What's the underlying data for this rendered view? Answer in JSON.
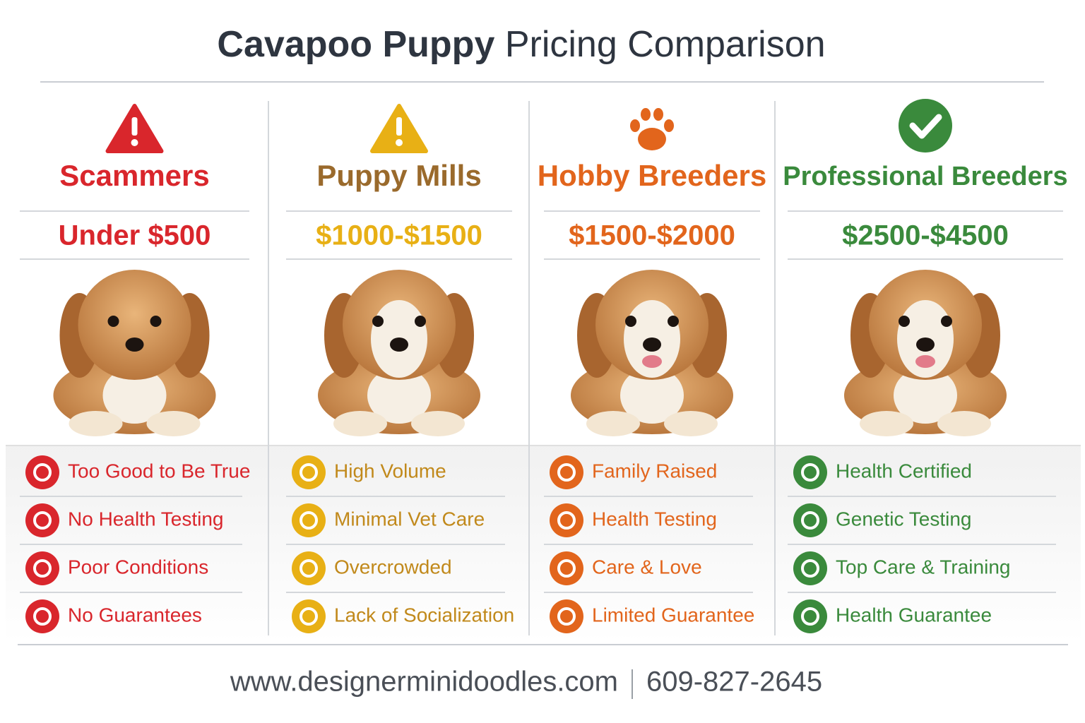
{
  "header": {
    "title_bold": "Cavapoo Puppy",
    "title_light": "Pricing Comparison"
  },
  "columns": [
    {
      "name": "Scammers",
      "price": "Under $500",
      "color": "#d9262c",
      "features": [
        "Too Good to Be True",
        "No Health Testing",
        "Poor Conditions",
        "No Guarantees"
      ]
    },
    {
      "name": "Puppy Mills",
      "price": "$1000-$1500",
      "color": "#e8b015",
      "name_color": "#9a6a2c",
      "features": [
        "High Volume",
        "Minimal Vet Care",
        "Overcrowded",
        "Lack of Socialization"
      ]
    },
    {
      "name": "Hobby Breeders",
      "price": "$1500-$2000",
      "color": "#e2651c",
      "features": [
        "Family Raised",
        "Health Testing",
        "Care & Love",
        "Limited Guarantee"
      ]
    },
    {
      "name": "Professional Breeders",
      "price": "$2500-$4500",
      "color": "#3a8a3c",
      "features": [
        "Health Certified",
        "Genetic Testing",
        "Top Care & Training",
        "Health Guarantee"
      ]
    }
  ],
  "footer": {
    "website": "www.designerminidoodles.com",
    "phone": "609-827-2645"
  }
}
